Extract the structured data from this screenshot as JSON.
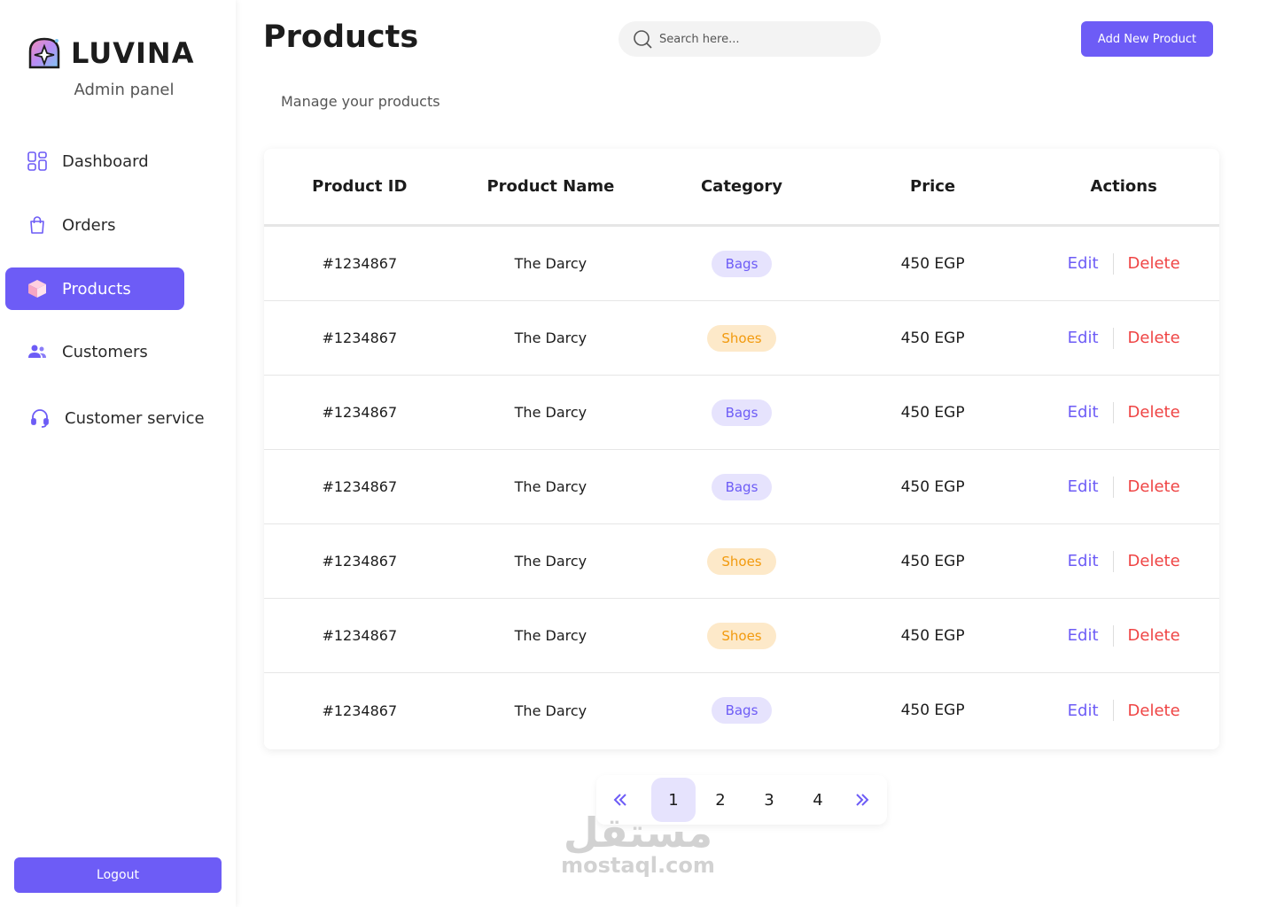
{
  "brand": {
    "name": "LUVINA",
    "subtitle": "Admin panel"
  },
  "nav": [
    {
      "label": "Dashboard",
      "icon": "grid-icon"
    },
    {
      "label": "Orders",
      "icon": "bag-icon"
    },
    {
      "label": "Products",
      "icon": "box-icon",
      "active": true
    },
    {
      "label": "Customers",
      "icon": "users-icon"
    },
    {
      "label": "Customer service",
      "icon": "headset-icon"
    }
  ],
  "logout_label": "Logout",
  "page": {
    "title": "Products",
    "subtitle": "Manage your products"
  },
  "search": {
    "placeholder": "Search here..."
  },
  "add_button": "Add New Product",
  "table": {
    "headers": [
      "Product ID",
      "Product Name",
      "Category",
      "Price",
      "Actions"
    ],
    "edit_label": "Edit",
    "delete_label": "Delete",
    "rows": [
      {
        "id": "#1234867",
        "name": "The Darcy",
        "category": "Bags",
        "price": "450 EGP"
      },
      {
        "id": "#1234867",
        "name": "The Darcy",
        "category": "Shoes",
        "price": "450 EGP"
      },
      {
        "id": "#1234867",
        "name": "The Darcy",
        "category": "Bags",
        "price": "450 EGP"
      },
      {
        "id": "#1234867",
        "name": "The Darcy",
        "category": "Bags",
        "price": "450 EGP"
      },
      {
        "id": "#1234867",
        "name": "The Darcy",
        "category": "Shoes",
        "price": "450 EGP"
      },
      {
        "id": "#1234867",
        "name": "The Darcy",
        "category": "Shoes",
        "price": "450 EGP"
      },
      {
        "id": "#1234867",
        "name": "The Darcy",
        "category": "Bags",
        "price": "450 EGP"
      }
    ]
  },
  "pagination": {
    "pages": [
      "1",
      "2",
      "3",
      "4"
    ],
    "current": "1",
    "prev": "«",
    "next": "»"
  },
  "watermark": {
    "arabic": "مستقل",
    "latin": "mostaql.com"
  },
  "colors": {
    "accent": "#6d5cf6",
    "danger": "#ef4444",
    "bags_bg": "#e6e3fd",
    "shoes_bg": "#fde9c9",
    "shoes_fg": "#f29a0e"
  }
}
